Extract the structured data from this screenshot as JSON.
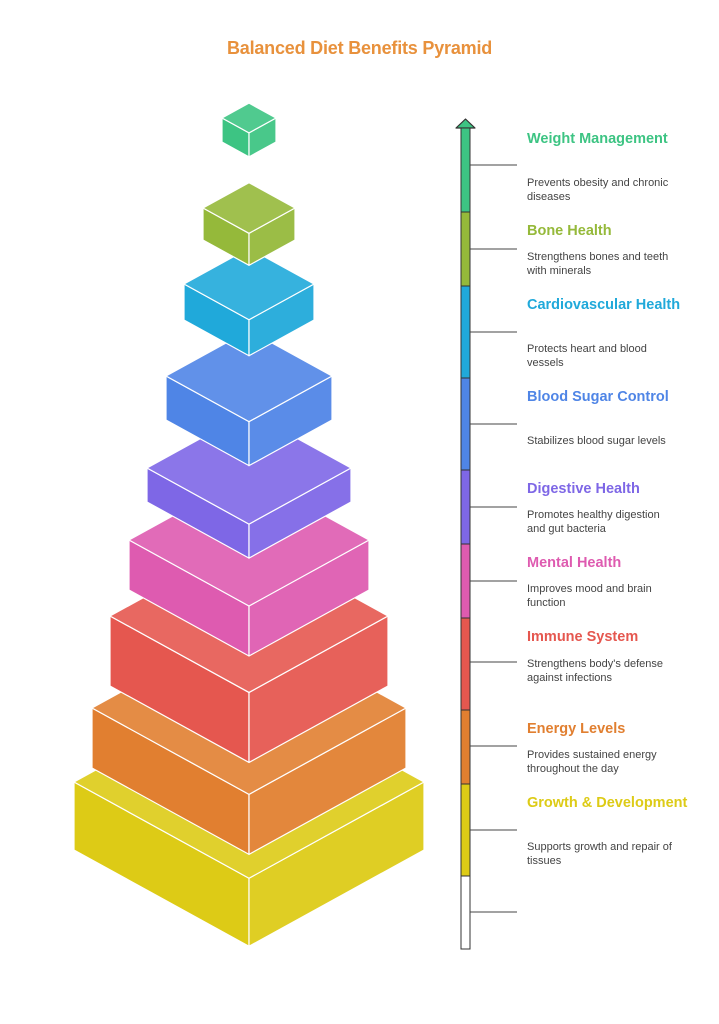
{
  "title": "Balanced Diet Benefits Pyramid",
  "colors": {
    "title": "#E8913C",
    "weight": "#3DC483",
    "bone": "#95B93A",
    "cardio": "#20A9DA",
    "blood": "#4F85E6",
    "digestive": "#7E67E6",
    "mental": "#DE5BB0",
    "immune": "#E5574F",
    "energy": "#E17F30",
    "growth": "#DDCB16"
  },
  "items": [
    {
      "id": "weight",
      "title": "Weight Management",
      "description": "Prevents obesity and chronic diseases"
    },
    {
      "id": "bone",
      "title": "Bone Health",
      "description": "Strengthens bones and teeth with minerals"
    },
    {
      "id": "cardio",
      "title": "Cardiovascular Health",
      "description": "Protects heart and blood vessels"
    },
    {
      "id": "blood",
      "title": "Blood Sugar Control",
      "description": "Stabilizes blood sugar levels"
    },
    {
      "id": "digestive",
      "title": "Digestive Health",
      "description": "Promotes healthy digestion and gut bacteria"
    },
    {
      "id": "mental",
      "title": "Mental Health",
      "description": "Improves mood and brain function"
    },
    {
      "id": "immune",
      "title": "Immune System",
      "description": "Strengthens body's defense against infections"
    },
    {
      "id": "energy",
      "title": "Energy Levels",
      "description": "Provides sustained energy throughout the day"
    },
    {
      "id": "growth",
      "title": "Growth & Development",
      "description": "Supports growth and repair of tissues"
    }
  ]
}
